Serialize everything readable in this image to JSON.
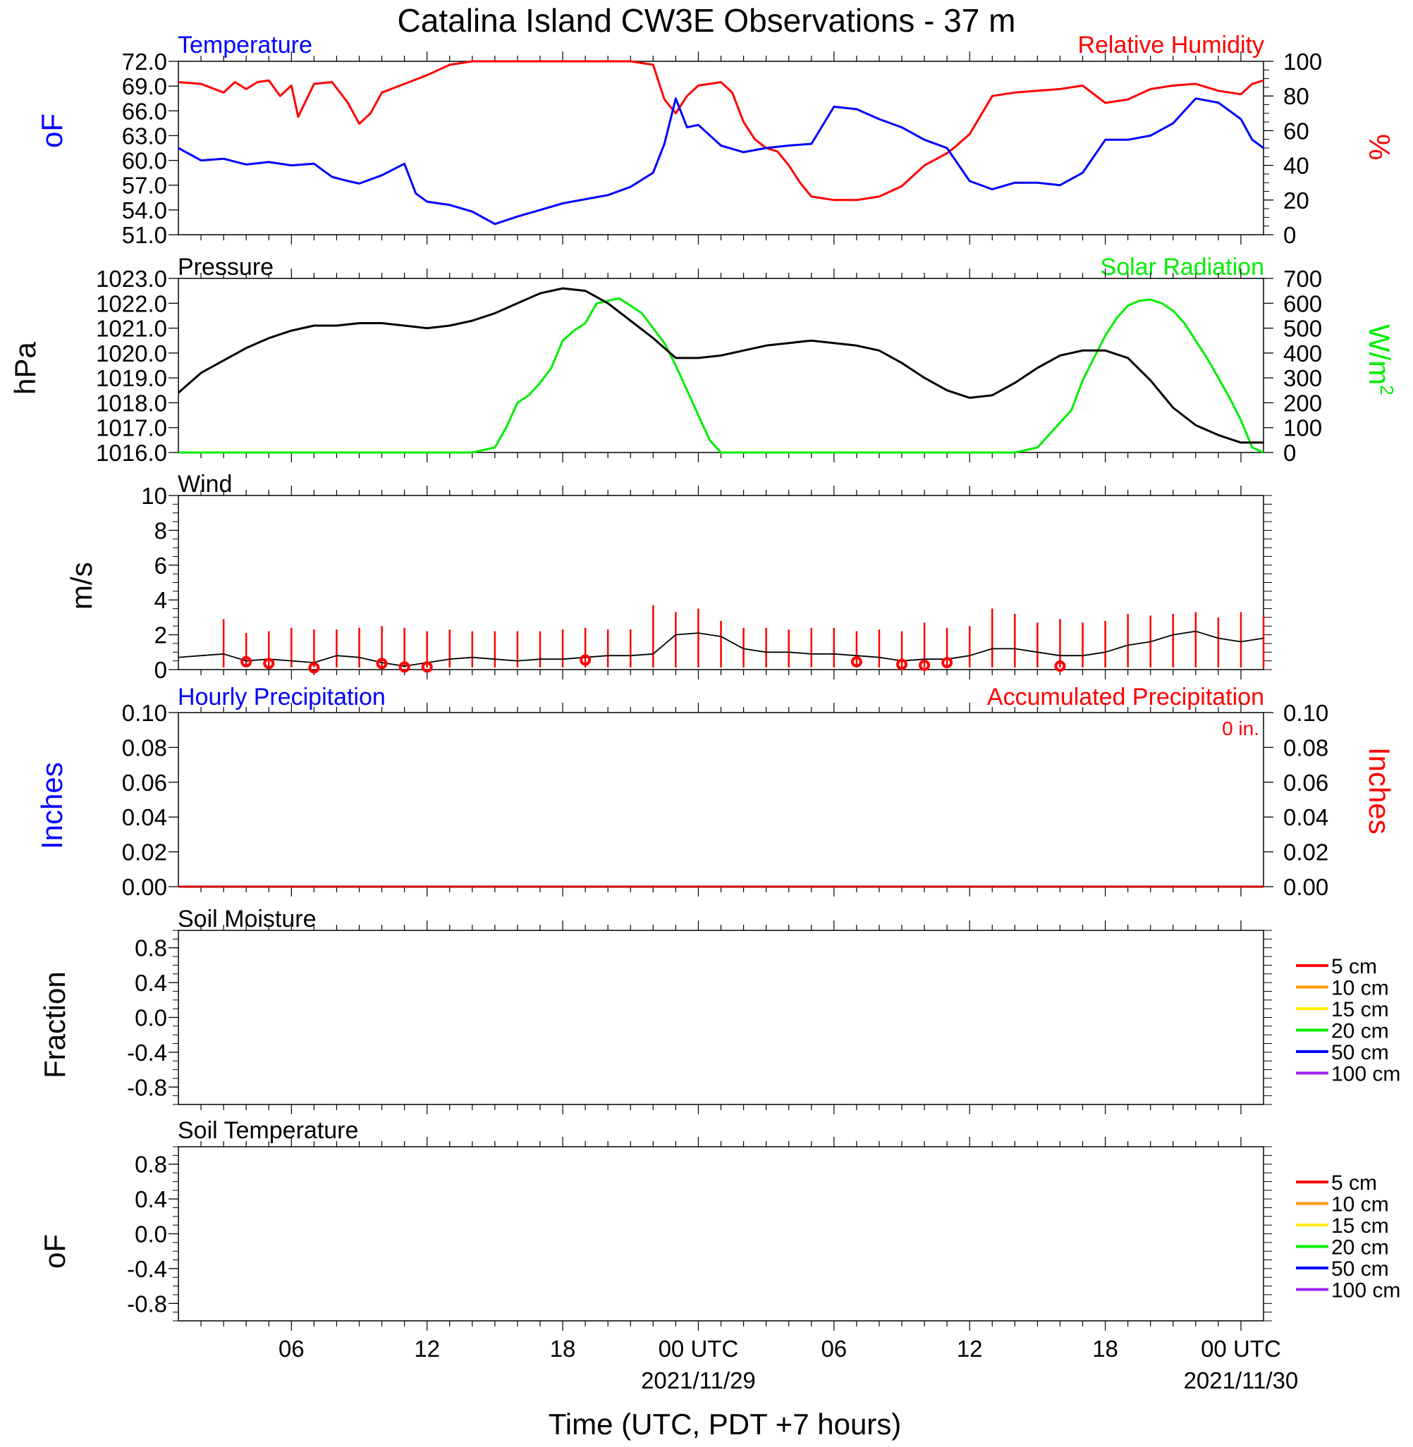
{
  "title": "Catalina Island CW3E Observations - 37 m",
  "x_axis": {
    "label": "Time (UTC, PDT +7 hours)",
    "ticks": [
      {
        "hour": 6,
        "label": "06",
        "date": ""
      },
      {
        "hour": 12,
        "label": "12",
        "date": ""
      },
      {
        "hour": 18,
        "label": "18",
        "date": ""
      },
      {
        "hour": 24,
        "label": "00 UTC",
        "date": "2021/11/29"
      },
      {
        "hour": 30,
        "label": "06",
        "date": ""
      },
      {
        "hour": 36,
        "label": "12",
        "date": ""
      },
      {
        "hour": 42,
        "label": "18",
        "date": ""
      },
      {
        "hour": 48,
        "label": "00 UTC",
        "date": "2021/11/30"
      }
    ],
    "range_hours": [
      1,
      49
    ]
  },
  "colors": {
    "temperature": "#0000ff",
    "humidity": "#ff0000",
    "pressure": "#000000",
    "solar": "#00ee00",
    "wind": "#000000",
    "gust": "#ff0000",
    "soil": [
      "#ff0000",
      "#ff9900",
      "#ffee00",
      "#00ee00",
      "#0000ff",
      "#a020f0"
    ]
  },
  "panels": {
    "temp_rh": {
      "left_title": "Temperature",
      "right_title": "Relative Humidity",
      "left_unit": "oF",
      "right_unit": "%",
      "left_ticks": [
        "72.0",
        "69.0",
        "66.0",
        "63.0",
        "60.0",
        "57.0",
        "54.0",
        "51.0"
      ],
      "right_ticks": [
        "100",
        "80",
        "60",
        "40",
        "20",
        "0"
      ]
    },
    "pressure_solar": {
      "left_title": "Pressure",
      "right_title": "Solar Radiation",
      "left_unit": "hPa",
      "right_unit": "W/m",
      "right_unit_sup": "2",
      "left_ticks": [
        "1023.0",
        "1022.0",
        "1021.0",
        "1020.0",
        "1019.0",
        "1018.0",
        "1017.0",
        "1016.0"
      ],
      "right_ticks": [
        "700",
        "600",
        "500",
        "400",
        "300",
        "200",
        "100",
        "0"
      ]
    },
    "wind": {
      "title": "Wind",
      "unit": "m/s",
      "ticks": [
        "10",
        "8",
        "6",
        "4",
        "2",
        "0"
      ]
    },
    "precip": {
      "left_title": "Hourly Precipitation",
      "right_title": "Accumulated Precipitation",
      "total_label": "0 in.",
      "left_unit": "Inches",
      "right_unit": "Inches",
      "ticks": [
        "0.10",
        "0.08",
        "0.06",
        "0.04",
        "0.02",
        "0.00"
      ]
    },
    "soil_moisture": {
      "title": "Soil Moisture",
      "unit": "Fraction",
      "ticks": [
        "0.8",
        "0.4",
        "0.0",
        "-0.4",
        "-0.8"
      ],
      "legend": [
        "5 cm",
        "10 cm",
        "15 cm",
        "20 cm",
        "50 cm",
        "100 cm"
      ]
    },
    "soil_temp": {
      "title": "Soil Temperature",
      "unit": "oF",
      "ticks": [
        "0.8",
        "0.4",
        "0.0",
        "-0.4",
        "-0.8"
      ],
      "legend": [
        "5 cm",
        "10 cm",
        "15 cm",
        "20 cm",
        "50 cm",
        "100 cm"
      ]
    }
  },
  "chart_data": [
    {
      "type": "line",
      "panel": "temp_rh",
      "x_unit": "hours since 2021/11/28 00 UTC",
      "ylim": [
        51,
        72
      ],
      "y2lim": [
        0,
        100
      ],
      "series": [
        {
          "name": "Temperature",
          "axis": "left",
          "x": [
            1,
            2,
            3,
            4,
            5,
            6,
            7,
            7.8,
            8.5,
            9,
            10,
            11,
            11.5,
            12,
            13,
            14,
            15,
            16,
            17,
            18,
            19,
            20,
            21,
            22,
            22.5,
            23,
            23.5,
            24,
            25,
            26,
            27,
            28,
            29,
            30,
            31,
            32,
            33,
            34,
            35,
            36,
            37,
            38,
            39,
            40,
            41,
            42,
            43,
            44,
            45,
            46,
            47,
            48,
            48.5,
            49
          ],
          "y": [
            61.5,
            60,
            60.2,
            59.5,
            59.8,
            59.4,
            59.6,
            58,
            57.5,
            57.2,
            58.2,
            59.6,
            56,
            55,
            54.6,
            53.8,
            52.3,
            53.2,
            54,
            54.8,
            55.3,
            55.8,
            56.8,
            58.5,
            62,
            67.5,
            64,
            64.3,
            61.8,
            61,
            61.5,
            61.8,
            62,
            66.5,
            66.2,
            65,
            64,
            62.5,
            61.5,
            57.5,
            56.5,
            57.3,
            57.3,
            57,
            58.5,
            62.5,
            62.5,
            63,
            64.5,
            67.5,
            67,
            65,
            62.5,
            61.5
          ]
        },
        {
          "name": "Relative Humidity",
          "axis": "right",
          "x": [
            1,
            2,
            3,
            3.5,
            4,
            4.5,
            5,
            5.5,
            6,
            6.3,
            7,
            7.8,
            8.5,
            9,
            9.5,
            10,
            11,
            12,
            13,
            14,
            15,
            16,
            17,
            18,
            19,
            20,
            21,
            22,
            22.5,
            23,
            23.5,
            24,
            25,
            25.5,
            26,
            26.5,
            27,
            27.5,
            28,
            28.5,
            29,
            30,
            31,
            32,
            33,
            34,
            35,
            35.3,
            36,
            37,
            38,
            39,
            40,
            41,
            42,
            43,
            44,
            45,
            46,
            47,
            48,
            48.5,
            49
          ],
          "y": [
            88,
            87,
            82,
            88,
            84,
            88,
            89,
            80,
            86,
            68,
            87,
            88,
            76,
            64,
            70,
            82,
            87,
            92,
            98,
            100,
            100,
            100,
            100,
            100,
            100,
            100,
            100,
            98,
            78,
            70,
            80,
            86,
            88,
            82,
            65,
            55,
            50,
            48,
            40,
            30,
            22,
            20,
            20,
            22,
            28,
            40,
            47,
            50,
            58,
            80,
            82,
            83,
            84,
            86,
            76,
            78,
            84,
            86,
            87,
            83,
            81,
            87,
            89
          ]
        },
        {
          "name": "",
          "axis": "none",
          "x": [],
          "y": []
        }
      ]
    },
    {
      "type": "line",
      "panel": "pressure_solar",
      "ylim": [
        1016,
        1023
      ],
      "y2lim": [
        0,
        700
      ],
      "series": [
        {
          "name": "Pressure",
          "axis": "left",
          "x": [
            1,
            2,
            3,
            4,
            5,
            6,
            7,
            8,
            9,
            10,
            11,
            12,
            13,
            14,
            15,
            16,
            17,
            18,
            19,
            20,
            21,
            22,
            23,
            24,
            25,
            26,
            27,
            28,
            29,
            30,
            31,
            32,
            33,
            34,
            35,
            36,
            37,
            38,
            39,
            40,
            41,
            42,
            43,
            44,
            45,
            46,
            47,
            48,
            49
          ],
          "y": [
            1018.4,
            1019.2,
            1019.7,
            1020.2,
            1020.6,
            1020.9,
            1021.1,
            1021.1,
            1021.2,
            1021.2,
            1021.1,
            1021,
            1021.1,
            1021.3,
            1021.6,
            1022,
            1022.4,
            1022.6,
            1022.5,
            1022,
            1021.3,
            1020.6,
            1019.8,
            1019.8,
            1019.9,
            1020.1,
            1020.3,
            1020.4,
            1020.5,
            1020.4,
            1020.3,
            1020.1,
            1019.6,
            1019,
            1018.5,
            1018.2,
            1018.3,
            1018.8,
            1019.4,
            1019.9,
            1020.1,
            1020.1,
            1019.8,
            1018.9,
            1017.8,
            1017.1,
            1016.7,
            1016.4,
            1016.4
          ]
        },
        {
          "name": "Solar Radiation",
          "axis": "right",
          "x": [
            1,
            14,
            15,
            15.5,
            16,
            16.5,
            17,
            17.5,
            18,
            18.5,
            19,
            19.5,
            20,
            20.5,
            21,
            21.5,
            22,
            22.5,
            23,
            23.5,
            24,
            24.5,
            25,
            38,
            39,
            40.5,
            41,
            41.5,
            42,
            42.5,
            43,
            43.5,
            44,
            44.5,
            45,
            45.5,
            46,
            46.5,
            47,
            47.5,
            48,
            48.5,
            49
          ],
          "y": [
            0,
            0,
            20,
            100,
            200,
            230,
            280,
            340,
            450,
            490,
            520,
            600,
            610,
            620,
            590,
            560,
            500,
            440,
            350,
            250,
            150,
            50,
            0,
            0,
            20,
            170,
            290,
            380,
            470,
            540,
            590,
            610,
            615,
            600,
            570,
            520,
            450,
            380,
            300,
            220,
            130,
            20,
            0
          ]
        }
      ]
    },
    {
      "type": "line",
      "panel": "wind",
      "ylim": [
        0,
        10
      ],
      "series": [
        {
          "name": "Wind speed",
          "x": [
            1,
            2,
            3,
            4,
            5,
            6,
            7,
            8,
            9,
            10,
            11,
            12,
            13,
            14,
            15,
            16,
            17,
            18,
            19,
            20,
            21,
            22,
            23,
            24,
            25,
            26,
            27,
            28,
            29,
            30,
            31,
            32,
            33,
            34,
            35,
            36,
            37,
            38,
            39,
            40,
            41,
            42,
            43,
            44,
            45,
            46,
            47,
            48,
            49
          ],
          "y": [
            0.7,
            0.8,
            0.9,
            0.5,
            0.6,
            0.5,
            0.4,
            0.8,
            0.7,
            0.4,
            0.2,
            0.4,
            0.6,
            0.7,
            0.6,
            0.5,
            0.6,
            0.6,
            0.7,
            0.8,
            0.8,
            0.9,
            2,
            2.1,
            1.9,
            1.2,
            1.0,
            1.0,
            0.9,
            0.9,
            0.8,
            0.7,
            0.5,
            0.6,
            0.6,
            0.8,
            1.2,
            1.2,
            1.0,
            0.8,
            0.8,
            1.0,
            1.4,
            1.6,
            2.0,
            2.2,
            1.8,
            1.6,
            1.8
          ]
        },
        {
          "name": "Gust",
          "x": [
            3,
            4,
            5,
            6,
            7,
            8,
            9,
            10,
            11,
            12,
            13,
            14,
            15,
            16,
            17,
            18,
            19,
            20,
            21,
            22,
            23,
            24,
            25,
            26,
            27,
            28,
            29,
            30,
            31,
            32,
            33,
            34,
            35,
            36,
            37,
            38,
            39,
            40,
            41,
            42,
            43,
            44,
            45,
            46,
            47,
            48,
            49
          ],
          "y": [
            2.9,
            2.1,
            2.2,
            2.4,
            2.3,
            2.3,
            2.4,
            2.5,
            2.4,
            2.2,
            2.3,
            2.2,
            2.2,
            2.2,
            2.2,
            2.3,
            2.4,
            2.3,
            2.3,
            3.7,
            3.3,
            3.5,
            2.8,
            2.4,
            2.4,
            2.3,
            2.4,
            2.4,
            2.2,
            2.3,
            2.2,
            2.7,
            2.4,
            2.5,
            3.5,
            3.2,
            2.7,
            2.9,
            2.7,
            2.8,
            3.2,
            3.1,
            3.2,
            3.3,
            3.0,
            3.3,
            3.1
          ]
        },
        {
          "name": "Calm markers",
          "x": [
            4,
            5,
            7,
            10,
            11,
            12,
            19,
            31,
            33,
            34,
            35,
            40
          ],
          "y": [
            0.45,
            0.35,
            0.1,
            0.35,
            0.15,
            0.15,
            0.55,
            0.45,
            0.3,
            0.25,
            0.4,
            0.2
          ]
        }
      ]
    },
    {
      "type": "line",
      "panel": "precip",
      "ylim": [
        0,
        0.1
      ],
      "series": [
        {
          "name": "Hourly Precipitation",
          "x": [
            1,
            49
          ],
          "y": [
            0,
            0
          ]
        },
        {
          "name": "Accumulated Precipitation",
          "x": [
            1,
            49
          ],
          "y": [
            0,
            0
          ]
        }
      ]
    },
    {
      "type": "line",
      "panel": "soil_moisture",
      "ylim": [
        -1,
        1
      ],
      "series": []
    },
    {
      "type": "line",
      "panel": "soil_temp",
      "ylim": [
        -1,
        1
      ],
      "series": []
    }
  ]
}
